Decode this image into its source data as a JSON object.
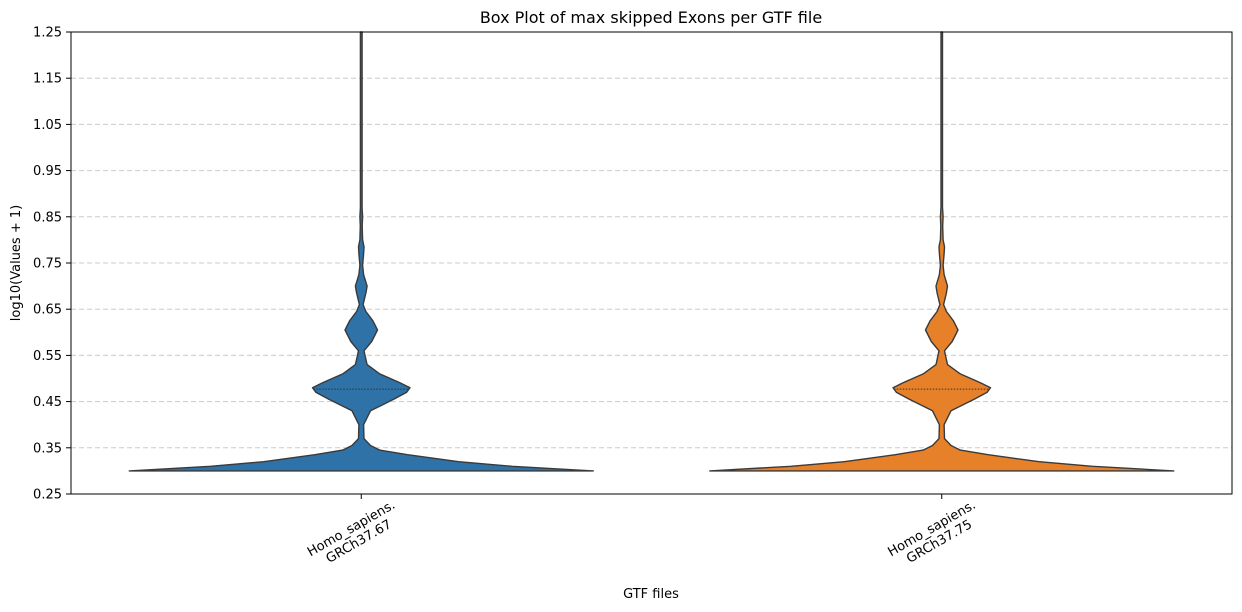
{
  "chart_data": {
    "type": "violin",
    "title": "Box Plot of max skipped Exons per GTF file",
    "xlabel": "GTF files",
    "ylabel": "log10(Values + 1)",
    "ylim": [
      0.25,
      1.25
    ],
    "yticks": [
      "0.25",
      "0.35",
      "0.45",
      "0.55",
      "0.65",
      "0.75",
      "0.85",
      "0.95",
      "1.05",
      "1.15",
      "1.25"
    ],
    "grid": "horizontal-dashed",
    "categories": [
      {
        "line1": "Homo_sapiens.",
        "line2": "GRCh37.67",
        "color": "#2e72a7"
      },
      {
        "line1": "Homo_sapiens.",
        "line2": "GRCh37.75",
        "color": "#e6812a"
      }
    ],
    "density_profile": [
      {
        "y": 0.3,
        "w": 1.0
      },
      {
        "y": 0.31,
        "w": 0.65
      },
      {
        "y": 0.32,
        "w": 0.42
      },
      {
        "y": 0.335,
        "w": 0.2
      },
      {
        "y": 0.345,
        "w": 0.08
      },
      {
        "y": 0.355,
        "w": 0.04
      },
      {
        "y": 0.37,
        "w": 0.012
      },
      {
        "y": 0.4,
        "w": 0.01
      },
      {
        "y": 0.43,
        "w": 0.04
      },
      {
        "y": 0.455,
        "w": 0.14
      },
      {
        "y": 0.47,
        "w": 0.195
      },
      {
        "y": 0.48,
        "w": 0.21
      },
      {
        "y": 0.49,
        "w": 0.17
      },
      {
        "y": 0.51,
        "w": 0.08
      },
      {
        "y": 0.53,
        "w": 0.025
      },
      {
        "y": 0.56,
        "w": 0.012
      },
      {
        "y": 0.58,
        "w": 0.045
      },
      {
        "y": 0.605,
        "w": 0.07
      },
      {
        "y": 0.625,
        "w": 0.05
      },
      {
        "y": 0.645,
        "w": 0.02
      },
      {
        "y": 0.66,
        "w": 0.008
      },
      {
        "y": 0.685,
        "w": 0.02
      },
      {
        "y": 0.7,
        "w": 0.025
      },
      {
        "y": 0.725,
        "w": 0.01
      },
      {
        "y": 0.745,
        "w": 0.006
      },
      {
        "y": 0.77,
        "w": 0.01
      },
      {
        "y": 0.785,
        "w": 0.012
      },
      {
        "y": 0.8,
        "w": 0.006
      },
      {
        "y": 0.83,
        "w": 0.004
      },
      {
        "y": 0.85,
        "w": 0.006
      },
      {
        "y": 0.87,
        "w": 0.003
      },
      {
        "y": 0.95,
        "w": 0.003
      },
      {
        "y": 1.05,
        "w": 0.002
      },
      {
        "y": 1.25,
        "w": 0.002
      }
    ],
    "median_line_y": 0.477
  }
}
